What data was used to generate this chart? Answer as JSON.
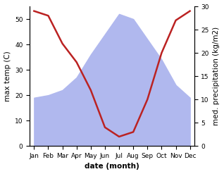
{
  "months": [
    "Jan",
    "Feb",
    "Mar",
    "Apr",
    "May",
    "Jun",
    "Jul",
    "Aug",
    "Sep",
    "Oct",
    "Nov",
    "Dec"
  ],
  "temp_max": [
    19,
    20,
    22,
    27,
    36,
    44,
    52,
    50,
    42,
    34,
    24,
    19
  ],
  "precipitation": [
    29,
    28,
    22,
    18,
    12,
    4,
    2,
    3,
    10,
    20,
    27,
    29
  ],
  "temp_fill_color": "#b0b8ee",
  "temp_line_color": "#bb2222",
  "temp_ylim": [
    0,
    55
  ],
  "precip_ylim": [
    0,
    30
  ],
  "ylabel_left": "max temp (C)",
  "ylabel_right": "med. precipitation (kg/m2)",
  "xlabel": "date (month)",
  "label_fontsize": 7.5,
  "tick_fontsize": 6.5,
  "background_color": "#ffffff"
}
